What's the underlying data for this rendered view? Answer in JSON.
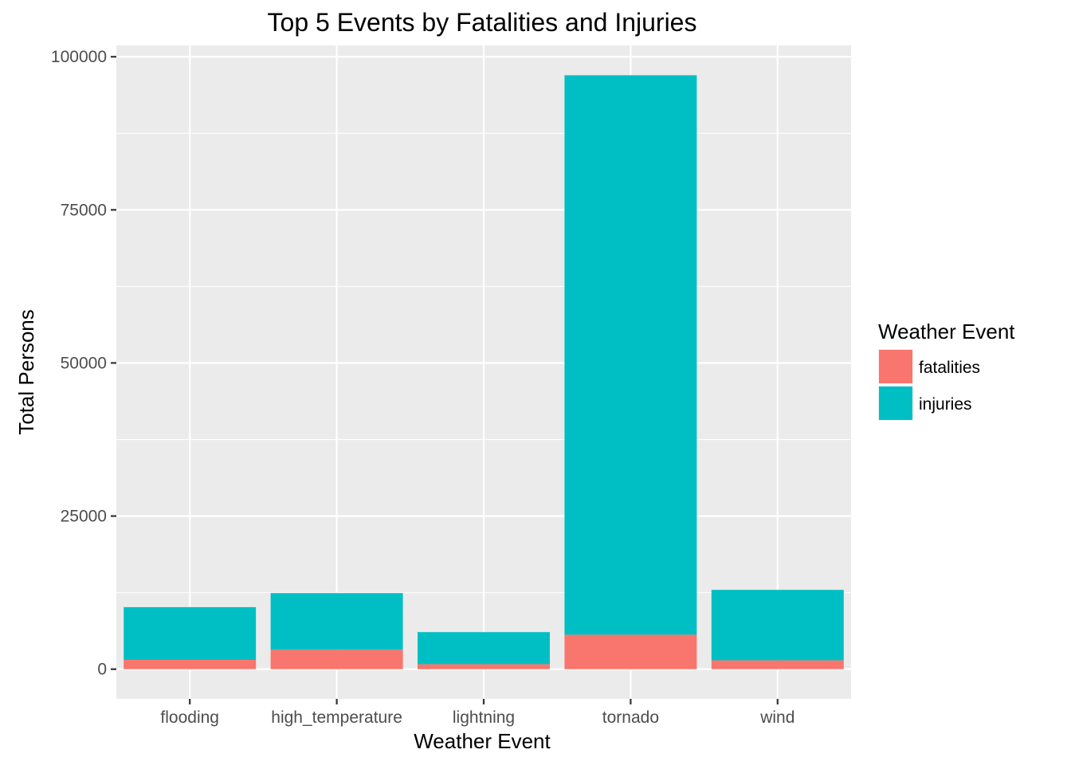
{
  "chart_data": {
    "type": "bar",
    "stacked": true,
    "title": "Top 5 Events by Fatalities and Injuries",
    "xlabel": "Weather Event",
    "ylabel": "Total Persons",
    "categories": [
      "flooding",
      "high_temperature",
      "lightning",
      "tornado",
      "wind"
    ],
    "series": [
      {
        "name": "fatalities",
        "color": "#F8766D",
        "values": [
          1525,
          3178,
          817,
          5633,
          1451
        ]
      },
      {
        "name": "injuries",
        "color": "#00BFC4",
        "values": [
          8604,
          9243,
          5232,
          91346,
          11498
        ]
      }
    ],
    "ylim": [
      -4850,
      101850
    ],
    "yticks": [
      0,
      25000,
      50000,
      75000,
      100000
    ],
    "ytick_labels": [
      "0",
      "25000",
      "50000",
      "75000",
      "100000"
    ],
    "grid": true,
    "legend": {
      "title": "Weather Event",
      "position": "right"
    },
    "panel_color": "#EBEBEB",
    "grid_color": "#FFFFFF"
  }
}
